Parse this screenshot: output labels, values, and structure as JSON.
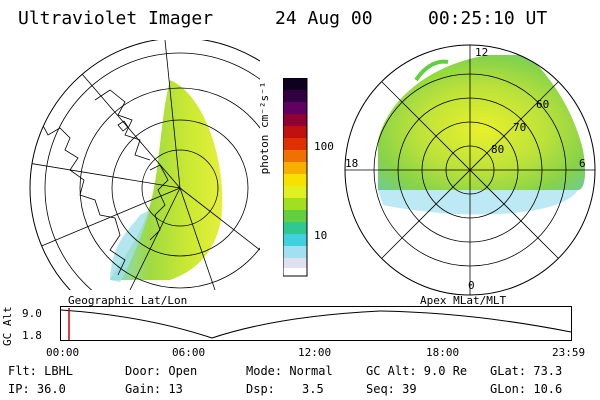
{
  "header": {
    "instrument": "Ultraviolet Imager",
    "date": "24 Aug 00",
    "time": "00:25:10 UT"
  },
  "colorbar": {
    "label": "photon cm⁻²s⁻¹",
    "ticks": [
      "100",
      "10"
    ],
    "colors": [
      "#ffffff",
      "#e0e0f0",
      "#a0e0f0",
      "#40d0e0",
      "#30c890",
      "#60d040",
      "#a0e020",
      "#e0f020",
      "#f8e000",
      "#f8b000",
      "#f07000",
      "#e03000",
      "#c01010",
      "#900030",
      "#600060",
      "#300040",
      "#100020"
    ]
  },
  "left_map": {
    "caption": "Geographic Lat/Lon"
  },
  "right_map": {
    "caption": "Apex MLat/MLT",
    "lat_labels": [
      "60",
      "70",
      "80"
    ],
    "mlt_labels": [
      "12",
      "18",
      "6",
      "0"
    ]
  },
  "altitude_plot": {
    "ylabel": "GC Alt",
    "y_ticks": [
      "9.0",
      "1.8"
    ],
    "x_ticks": [
      "00:00",
      "06:00",
      "12:00",
      "18:00",
      "23:59"
    ]
  },
  "info": {
    "filter": "Flt: LBHL",
    "ip": "IP: 36.0",
    "door": "Door: Open",
    "gain": "Gain: 13",
    "mode": "Mode: Normal",
    "dsp_label": "Dsp:",
    "dsp_value": "3.5",
    "gc_alt": "GC Alt: 9.0 Re",
    "seq": "Seq: 39",
    "glat": "GLat: 73.3",
    "glon": "GLon: 10.6"
  }
}
